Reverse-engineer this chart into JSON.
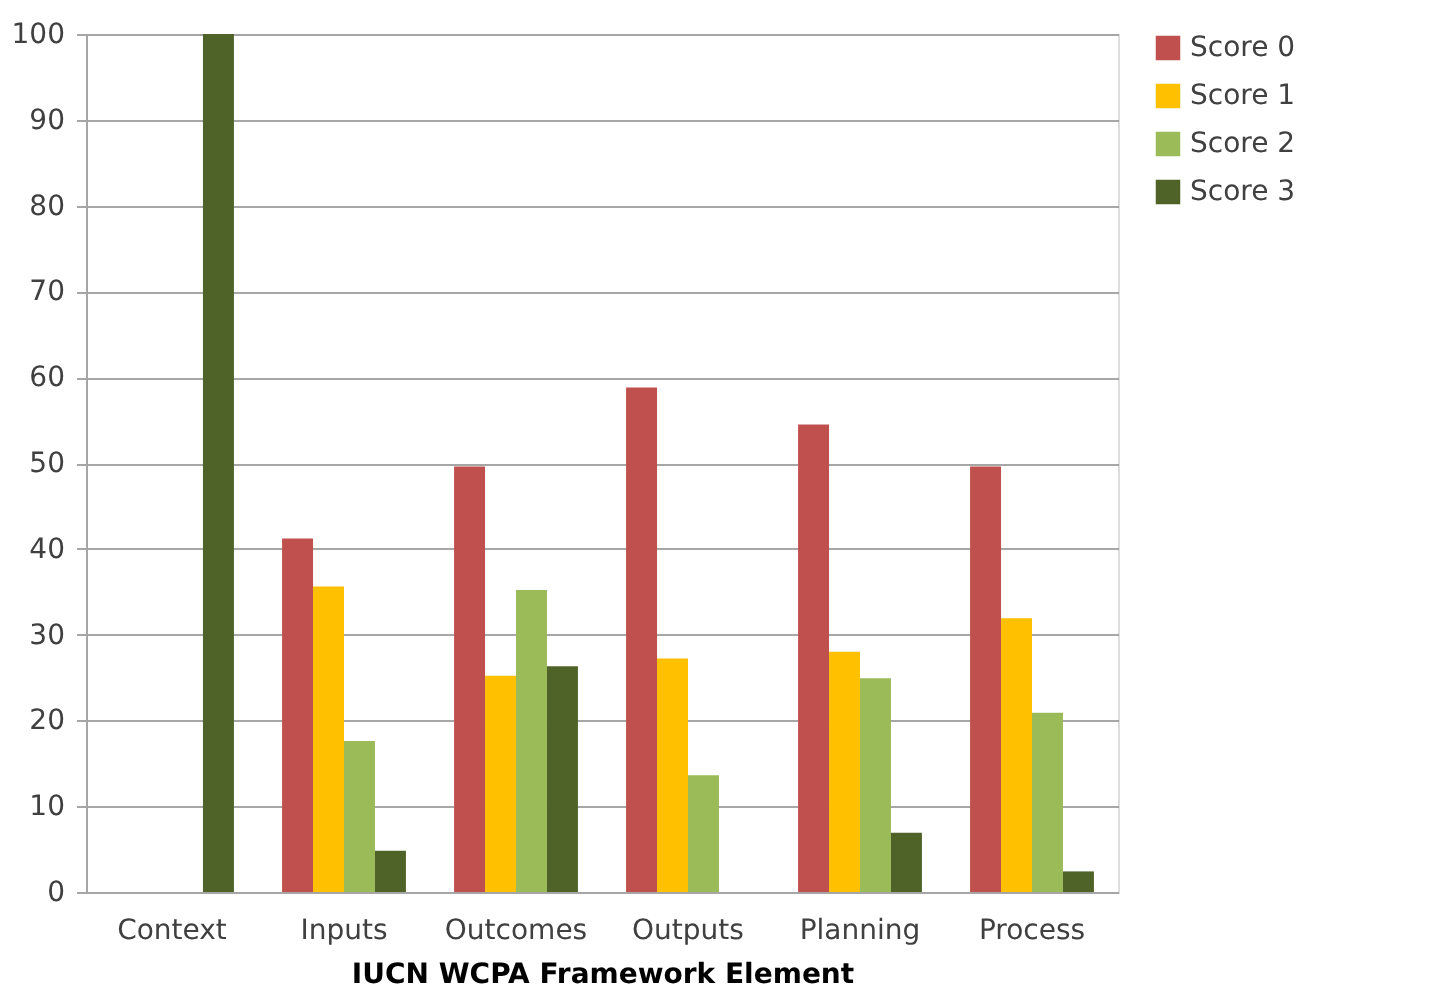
{
  "chart_data": {
    "type": "bar",
    "xlabel": "IUCN WCPA Framework Element",
    "categories": [
      "Context",
      "Inputs",
      "Outcomes",
      "Outputs",
      "Planning",
      "Process"
    ],
    "series": [
      {
        "name": "Score 0",
        "color": "#c0504d",
        "values": [
          0,
          41.2,
          49.6,
          58.8,
          54.5,
          49.6
        ]
      },
      {
        "name": "Score 1",
        "color": "#ffc000",
        "values": [
          0,
          35.6,
          25.2,
          27.2,
          28.0,
          31.9
        ]
      },
      {
        "name": "Score 2",
        "color": "#9bbb59",
        "values": [
          0,
          17.6,
          35.2,
          13.6,
          24.9,
          20.9
        ]
      },
      {
        "name": "Score 3",
        "color": "#4f6228",
        "values": [
          100,
          4.8,
          26.3,
          0,
          6.9,
          2.4
        ]
      }
    ],
    "ylim": [
      0,
      100
    ],
    "yticks": [
      0,
      10,
      20,
      30,
      40,
      50,
      60,
      70,
      80,
      90,
      100
    ],
    "grid": "y",
    "legend": "right"
  }
}
